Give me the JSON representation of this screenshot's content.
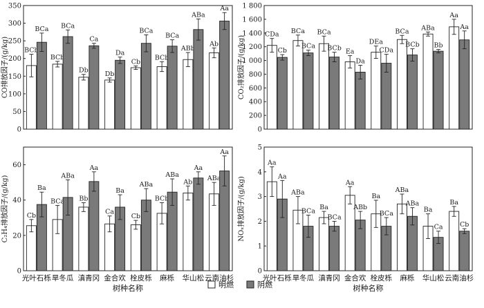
{
  "legend": {
    "open": {
      "label": "明燃",
      "color": "#ffffff"
    },
    "smolder": {
      "label": "阴燃",
      "color": "#7a7a7a"
    }
  },
  "xlabel": "树种名称",
  "chart_data": [
    {
      "type": "bar",
      "ylabel": "CO排放因子/(g/kg)",
      "ylim": [
        0,
        350
      ],
      "ticks": [
        "0",
        "50",
        "100",
        "150",
        "200",
        "250",
        "300",
        "350"
      ],
      "categories": [
        "光叶石栎",
        "旱冬瓜",
        "滇青冈",
        "金合欢",
        "栓皮栎",
        "麻栎",
        "华山松",
        "云南油杉"
      ],
      "series": [
        {
          "name": "明燃",
          "values": [
            180,
            184,
            147,
            139,
            174,
            177,
            197,
            216
          ],
          "errors": [
            32,
            8,
            8,
            6,
            5,
            14,
            20,
            14
          ],
          "labels": [
            "BCb",
            "BCb",
            "Db",
            "Db",
            "Cb",
            "BCb",
            "ABb",
            "Ab"
          ]
        },
        {
          "name": "阴燃",
          "values": [
            246,
            262,
            236,
            195,
            243,
            235,
            282,
            306
          ],
          "errors": [
            26,
            19,
            7,
            9,
            24,
            18,
            30,
            24
          ],
          "labels": [
            "BCa",
            "BCa",
            "Ca",
            "Da",
            "BCa",
            "BCa",
            "ABa",
            "Aa"
          ]
        }
      ]
    },
    {
      "type": "bar",
      "ylabel": "CO₂排放因子/(g/kg)",
      "ylim": [
        0,
        1800
      ],
      "ticks": [
        "0",
        "200",
        "400",
        "600",
        "800",
        "1 000",
        "1 200",
        "1 400",
        "1 600",
        "1 800"
      ],
      "categories": [
        "光叶石栎",
        "旱冬瓜",
        "滇青冈",
        "金合欢",
        "栓皮栎",
        "麻栎",
        "华山松",
        "云南油杉"
      ],
      "series": [
        {
          "name": "明燃",
          "values": [
            1220,
            1290,
            1245,
            980,
            1120,
            1305,
            1385,
            1490
          ],
          "errors": [
            100,
            80,
            110,
            90,
            90,
            60,
            30,
            110
          ],
          "labels": [
            "CDa",
            "BCa",
            "BCa",
            "Ea",
            "DEa",
            "BCa",
            "ABa",
            "Aa"
          ]
        },
        {
          "name": "阴燃",
          "values": [
            1045,
            1110,
            1050,
            830,
            960,
            1080,
            1135,
            1300
          ],
          "errors": [
            40,
            40,
            70,
            100,
            130,
            90,
            25,
            130
          ],
          "labels": [
            "Cb",
            "BCa",
            "BCb",
            "Da",
            "CDa",
            "BCb",
            "Bb",
            "Aa"
          ]
        }
      ]
    },
    {
      "type": "bar",
      "ylabel": "C₂H₄排放因子/(g/kg)",
      "ylim": [
        0,
        70
      ],
      "ticks": [
        "0",
        "20",
        "40",
        "60"
      ],
      "categories": [
        "光叶石栎",
        "旱冬瓜",
        "滇青冈",
        "金合欢",
        "栓皮栎",
        "麻栎",
        "华山松",
        "云南油杉"
      ],
      "series": [
        {
          "name": "明燃",
          "values": [
            25.5,
            29,
            36,
            26.5,
            26,
            32.5,
            44,
            43.5
          ],
          "errors": [
            3.5,
            8,
            2.5,
            4.5,
            2.5,
            6,
            4,
            6.5
          ],
          "labels": [
            "Cb",
            "BCa",
            "Bb",
            "Ca",
            "Cb",
            "BCb",
            "Ab",
            "ABa"
          ]
        },
        {
          "name": "阴燃",
          "values": [
            37.5,
            41.5,
            50.5,
            36,
            40,
            44.5,
            52.5,
            56.5
          ],
          "errors": [
            7,
            10,
            5.5,
            7,
            6.5,
            7.5,
            3.5,
            8.5
          ],
          "labels": [
            "Ba",
            "ABa",
            "Aa",
            "Ba",
            "ABa",
            "ABa",
            "Aa",
            "Aa"
          ]
        }
      ]
    },
    {
      "type": "bar",
      "ylabel": "NOₓ排放因子/(g/kg)",
      "ylim": [
        0,
        5
      ],
      "ticks": [
        "0",
        "1",
        "2",
        "3",
        "4",
        "5"
      ],
      "categories": [
        "光叶石栎",
        "旱冬瓜",
        "滇青冈",
        "金合欢",
        "栓皮栎",
        "麻栎",
        "华山松",
        "云南油杉"
      ],
      "series": [
        {
          "name": "明燃",
          "values": [
            3.6,
            2.45,
            2.15,
            3.05,
            2.3,
            2.7,
            1.8,
            2.4
          ],
          "errors": [
            0.6,
            0.55,
            0.25,
            0.35,
            0.55,
            0.4,
            0.5,
            0.2
          ],
          "labels": [
            "Aa",
            "ABa",
            "Ba",
            "Aa",
            "Ba",
            "ABa",
            "Ba",
            "Ba"
          ]
        },
        {
          "name": "阴燃",
          "values": [
            2.9,
            1.8,
            1.8,
            2.05,
            1.8,
            2.2,
            1.35,
            1.6
          ],
          "errors": [
            0.75,
            0.45,
            0.2,
            0.35,
            0.35,
            0.35,
            0.25,
            0.1
          ],
          "labels": [
            "Aa",
            "BCa",
            "BCa",
            "ABb",
            "BCa",
            "ABa",
            "Ca",
            "Cb"
          ]
        }
      ]
    }
  ]
}
